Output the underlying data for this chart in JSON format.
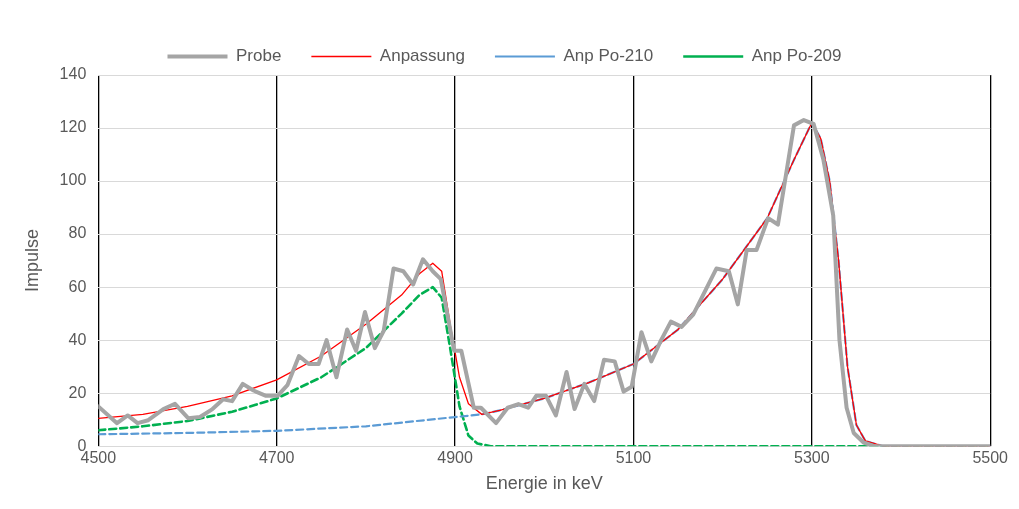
{
  "chart_data": {
    "type": "line",
    "xlabel": "Energie in keV",
    "ylabel": "Impulse",
    "xlim": [
      4500,
      5500
    ],
    "xticks": [
      4500,
      4700,
      4900,
      5100,
      5300,
      5500
    ],
    "ylim": [
      0,
      140
    ],
    "yticks": [
      0,
      20,
      40,
      60,
      80,
      100,
      120,
      140
    ],
    "grid": true,
    "legend": "top",
    "marker": "none",
    "series": [
      {
        "name": "Probe",
        "color": "#a5a5a5",
        "line_style": "solid",
        "x": [
          4500,
          4521,
          4533,
          4544,
          4556,
          4573,
          4586,
          4601,
          4614,
          4628,
          4640,
          4650,
          4662,
          4674,
          4688,
          4701,
          4712,
          4725,
          4736,
          4747,
          4756,
          4767,
          4779,
          4789,
          4799,
          4810,
          4820,
          4831,
          4842,
          4853,
          4864,
          4875,
          4884,
          4899,
          4907,
          4921,
          4929,
          4946,
          4959,
          4971,
          4982,
          4991,
          5002,
          5013,
          5025,
          5034,
          5045,
          5056,
          5067,
          5079,
          5089,
          5098,
          5109,
          5120,
          5131,
          5142,
          5154,
          5167,
          5193,
          5207,
          5217,
          5227,
          5238,
          5251,
          5262,
          5280,
          5291,
          5302,
          5313,
          5324,
          5331,
          5339,
          5347,
          5358,
          5370,
          5500
        ],
        "values": [
          15,
          8.7,
          11.6,
          8.7,
          9.8,
          14,
          16,
          10.5,
          11,
          14,
          17.7,
          17,
          23.5,
          21,
          19,
          19,
          23,
          34,
          31,
          31,
          40,
          26,
          44,
          36,
          50.6,
          37,
          43.5,
          67,
          66,
          61,
          70.5,
          66,
          63,
          36,
          36,
          14.5,
          14.5,
          8.7,
          14.5,
          15.9,
          14.5,
          19,
          19,
          11.6,
          28,
          14,
          23.5,
          17,
          32.6,
          32,
          20.6,
          22.4,
          43,
          32,
          40,
          47,
          45,
          49.6,
          67,
          66,
          53.5,
          74,
          74,
          86,
          83.6,
          121,
          123,
          121.6,
          108,
          87,
          40,
          14.5,
          5,
          1.4,
          0,
          0
        ]
      },
      {
        "name": "Anpassung",
        "color": "#ff0000",
        "line_style": "solid",
        "x": [
          4500,
          4550,
          4600,
          4650,
          4700,
          4750,
          4800,
          4840,
          4860,
          4875,
          4885,
          4895,
          4905,
          4915,
          4930,
          4950,
          5000,
          5050,
          5100,
          5150,
          5200,
          5250,
          5280,
          5300,
          5310,
          5320,
          5330,
          5340,
          5350,
          5360,
          5380,
          5500
        ],
        "values": [
          10.5,
          12,
          15,
          19,
          25,
          34,
          46,
          57,
          65,
          69,
          66,
          45,
          26,
          16,
          12,
          13.5,
          18,
          24,
          31,
          44,
          63,
          86,
          108,
          122,
          116,
          100,
          70,
          30,
          8,
          2,
          0,
          0
        ]
      },
      {
        "name": "Anp Po-210",
        "color": "#5b9bd5",
        "line_style": "dashed",
        "x": [
          4500,
          4600,
          4700,
          4800,
          4900,
          4930,
          4950,
          5000,
          5050,
          5100,
          5150,
          5200,
          5250,
          5280,
          5300,
          5310,
          5320,
          5330,
          5340,
          5350,
          5360,
          5380,
          5500
        ],
        "values": [
          4.5,
          5,
          5.8,
          7.5,
          11,
          12,
          13.5,
          18,
          24,
          31,
          44,
          63,
          86,
          108,
          122,
          116,
          100,
          70,
          30,
          8,
          2,
          0,
          0
        ]
      },
      {
        "name": "Anp Po-209",
        "color": "#00b050",
        "line_style": "dashed",
        "x": [
          4500,
          4550,
          4600,
          4650,
          4700,
          4750,
          4800,
          4840,
          4860,
          4875,
          4885,
          4895,
          4905,
          4915,
          4925,
          4940,
          5500
        ],
        "values": [
          6,
          7.5,
          9.5,
          13,
          18,
          26,
          37,
          50,
          57,
          60,
          56,
          36,
          15,
          4,
          1,
          0,
          0
        ]
      }
    ]
  }
}
